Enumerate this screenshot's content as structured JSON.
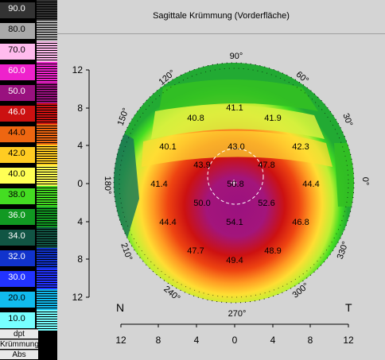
{
  "title": "Sagittale Krümmung (Vorderfläche)",
  "scale": {
    "items": [
      {
        "label": "90.0",
        "color": "#333333"
      },
      {
        "label": "80.0",
        "color": "#a9a9a9"
      },
      {
        "label": "70.0",
        "color": "#ffbbee"
      },
      {
        "label": "60.0",
        "color": "#ee22cc"
      },
      {
        "label": "50.0",
        "color": "#99117f"
      },
      {
        "label": "46.0",
        "color": "#cc1111"
      },
      {
        "label": "44.0",
        "color": "#ee6611"
      },
      {
        "label": "42.0",
        "color": "#ffcc22"
      },
      {
        "label": "40.0",
        "color": "#ffff55"
      },
      {
        "label": "38.0",
        "color": "#44dd22"
      },
      {
        "label": "36.0",
        "color": "#119922"
      },
      {
        "label": "34.0",
        "color": "#115544"
      },
      {
        "label": "32.0",
        "color": "#1133cc"
      },
      {
        "label": "30.0",
        "color": "#2233ff"
      },
      {
        "label": "20.0",
        "color": "#11bbee"
      },
      {
        "label": "10.0",
        "color": "#77ffff"
      }
    ],
    "footer": [
      "dpt",
      "Krümmung",
      "Abs"
    ]
  },
  "axes": {
    "y_ticks": [
      "12",
      "8",
      "4",
      "0",
      "4",
      "8",
      "12"
    ],
    "x_ticks": [
      "12",
      "8",
      "4",
      "0",
      "4",
      "8",
      "12"
    ],
    "left_corner": "N",
    "right_corner": "T"
  },
  "angles": [
    "90°",
    "60°",
    "30°",
    "0°",
    "330°",
    "300°",
    "270°",
    "240°",
    "210°",
    "180°",
    "150°",
    "120°"
  ],
  "values": [
    "41.1",
    "40.8",
    "41.9",
    "40.1",
    "43.0",
    "42.3",
    "43.9",
    "47.8",
    "41.4",
    "50.8",
    "44.4",
    "50.0",
    "52.6",
    "44.4",
    "54.1",
    "46.8",
    "47.7",
    "49.4",
    "48.9"
  ]
}
